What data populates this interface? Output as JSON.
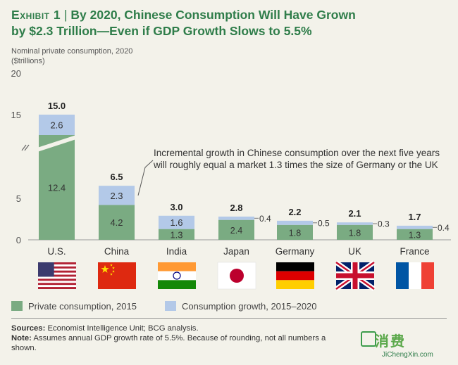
{
  "header": {
    "exhibit_label": "Exhibit 1",
    "separator": "|",
    "title_line1": "By 2020, Chinese Consumption Will Have Grown",
    "title_line2": "by $2.3 Trillion—Even if GDP Growth Slows to 5.5%"
  },
  "chart_data": {
    "type": "bar",
    "stacked": true,
    "ylabel_line1": "Nominal private consumption, 2020",
    "ylabel_line2": "($trillions)",
    "y_ticks": [
      0,
      5,
      15,
      20
    ],
    "ylim": [
      0,
      20
    ],
    "axis_break": true,
    "categories": [
      "U.S.",
      "China",
      "India",
      "Japan",
      "Germany",
      "UK",
      "France"
    ],
    "totals": [
      "15.0",
      "6.5",
      "3.0",
      "2.8",
      "2.2",
      "2.1",
      "1.7"
    ],
    "series": [
      {
        "name": "Private consumption, 2015",
        "color": "#7aab82",
        "values": [
          12.4,
          4.2,
          1.3,
          2.4,
          1.8,
          1.8,
          1.3
        ],
        "labels": [
          "12.4",
          "4.2",
          "1.3",
          "2.4",
          "1.8",
          "1.8",
          "1.3"
        ]
      },
      {
        "name": "Consumption growth, 2015–2020",
        "color": "#b3c9e8",
        "values": [
          2.6,
          2.3,
          1.6,
          0.4,
          0.5,
          0.3,
          0.4
        ],
        "labels": [
          "2.6",
          "2.3",
          "1.6",
          "0.4",
          "0.5",
          "0.3",
          "0.4"
        ]
      }
    ],
    "annotation_line1": "Incremental growth in Chinese consumption over the next five years",
    "annotation_line2": "will roughly equal a market 1.3 times the size of Germany or the UK"
  },
  "flags": [
    "us-flag-icon",
    "china-flag-icon",
    "india-flag-icon",
    "japan-flag-icon",
    "germany-flag-icon",
    "uk-flag-icon",
    "france-flag-icon"
  ],
  "legend": {
    "item1": "Private consumption, 2015",
    "item2": "Consumption growth, 2015–2020"
  },
  "footer": {
    "sources_label": "Sources:",
    "sources_text": "Economist Intelligence Unit; BCG analysis.",
    "note_label": "Note:",
    "note_text": "Assumes annual GDP growth rate of 5.5%. Because of rounding, not all numbers a",
    "note_text2": "shown."
  },
  "watermark": {
    "logo": "消费",
    "url": "JiChengXin.com"
  }
}
